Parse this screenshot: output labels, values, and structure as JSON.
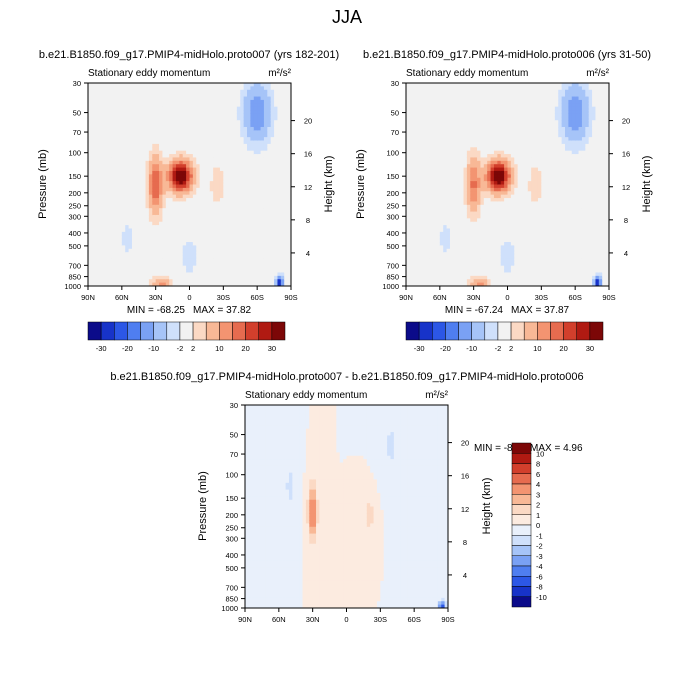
{
  "figure_title": "JJA",
  "chart_data": [
    {
      "type": "heatmap",
      "title": "b.e21.B1850.f09_g17.PMIP4-midHolo.proto007 (yrs 182-201)",
      "subtitle": "Stationary eddy momentum",
      "units": "m²/s²",
      "xlabel": "",
      "ylabel": "Pressure (mb)",
      "y2label": "Height (km)",
      "x_ticks": [
        "90N",
        "60N",
        "30N",
        "0",
        "30S",
        "60S",
        "90S"
      ],
      "x_tick_values": [
        90,
        60,
        30,
        0,
        -30,
        -60,
        -90
      ],
      "xlim": [
        90,
        -90
      ],
      "y_ticks": [
        "30",
        "50",
        "70",
        "100",
        "150",
        "200",
        "250",
        "300",
        "400",
        "500",
        "700",
        "850",
        "1000"
      ],
      "y_tick_values": [
        30,
        50,
        70,
        100,
        150,
        200,
        250,
        300,
        400,
        500,
        700,
        850,
        1000
      ],
      "ylim": [
        1000,
        30
      ],
      "y_scale": "log",
      "y2_ticks": [
        "4",
        "8",
        "12",
        "16",
        "20"
      ],
      "y2_tick_values": [
        4,
        8,
        12,
        16,
        20
      ],
      "min_label": "MIN = -68.25",
      "max_label": "MAX = 37.82",
      "min": -68.25,
      "max": 37.82,
      "features": [
        {
          "lat": 8,
          "p": 150,
          "value": 37,
          "rlat": 10,
          "rlogp": 0.11
        },
        {
          "lat": 30,
          "p": 175,
          "value": 20,
          "rlat": 6,
          "rlogp": 0.2
        },
        {
          "lat": 25,
          "p": 975,
          "value": 12,
          "rlat": 8,
          "rlogp": 0.05
        },
        {
          "lat": -25,
          "p": 175,
          "value": 5,
          "rlat": 6,
          "rlogp": 0.14
        },
        {
          "lat": -60,
          "p": 50,
          "value": -14,
          "rlat": 12,
          "rlogp": 0.22
        },
        {
          "lat": -80,
          "p": 950,
          "value": -30,
          "rlat": 3,
          "rlogp": 0.05
        },
        {
          "lat": 0,
          "p": 600,
          "value": -5,
          "rlat": 6,
          "rlogp": 0.13
        },
        {
          "lat": 55,
          "p": 450,
          "value": -4,
          "rlat": 5,
          "rlogp": 0.12
        }
      ]
    },
    {
      "type": "heatmap",
      "title": "b.e21.B1850.f09_g17.PMIP4-midHolo.proto006 (yrs 31-50)",
      "subtitle": "Stationary eddy momentum",
      "units": "m²/s²",
      "xlabel": "",
      "ylabel": "Pressure (mb)",
      "y2label": "Height (km)",
      "x_ticks": [
        "90N",
        "60N",
        "30N",
        "0",
        "30S",
        "60S",
        "90S"
      ],
      "x_tick_values": [
        90,
        60,
        30,
        0,
        -30,
        -60,
        -90
      ],
      "xlim": [
        90,
        -90
      ],
      "y_ticks": [
        "30",
        "50",
        "70",
        "100",
        "150",
        "200",
        "250",
        "300",
        "400",
        "500",
        "700",
        "850",
        "1000"
      ],
      "y_tick_values": [
        30,
        50,
        70,
        100,
        150,
        200,
        250,
        300,
        400,
        500,
        700,
        850,
        1000
      ],
      "ylim": [
        1000,
        30
      ],
      "y_scale": "log",
      "y2_ticks": [
        "4",
        "8",
        "12",
        "16",
        "20"
      ],
      "y2_tick_values": [
        4,
        8,
        12,
        16,
        20
      ],
      "min_label": "MIN = -67.24",
      "max_label": "MAX = 37.87",
      "min": -67.24,
      "max": 37.87,
      "features": [
        {
          "lat": 8,
          "p": 150,
          "value": 37,
          "rlat": 10,
          "rlogp": 0.11
        },
        {
          "lat": 30,
          "p": 175,
          "value": 16,
          "rlat": 6,
          "rlogp": 0.2
        },
        {
          "lat": 25,
          "p": 975,
          "value": 12,
          "rlat": 8,
          "rlogp": 0.05
        },
        {
          "lat": -25,
          "p": 175,
          "value": 5,
          "rlat": 6,
          "rlogp": 0.14
        },
        {
          "lat": -60,
          "p": 50,
          "value": -14,
          "rlat": 12,
          "rlogp": 0.22
        },
        {
          "lat": -80,
          "p": 950,
          "value": -30,
          "rlat": 3,
          "rlogp": 0.05
        },
        {
          "lat": 0,
          "p": 600,
          "value": -5,
          "rlat": 6,
          "rlogp": 0.13
        },
        {
          "lat": 55,
          "p": 450,
          "value": -4,
          "rlat": 5,
          "rlogp": 0.12
        }
      ]
    },
    {
      "type": "heatmap",
      "title": "b.e21.B1850.f09_g17.PMIP4-midHolo.proto007 - b.e21.B1850.f09_g17.PMIP4-midHolo.proto006",
      "subtitle": "Stationary eddy momentum",
      "units": "m²/s²",
      "xlabel": "",
      "ylabel": "Pressure (mb)",
      "y2label": "Height (km)",
      "x_ticks": [
        "90N",
        "60N",
        "30N",
        "0",
        "30S",
        "60S",
        "90S"
      ],
      "x_tick_values": [
        90,
        60,
        30,
        0,
        -30,
        -60,
        -90
      ],
      "xlim": [
        90,
        -90
      ],
      "y_ticks": [
        "30",
        "50",
        "70",
        "100",
        "150",
        "200",
        "250",
        "300",
        "400",
        "500",
        "700",
        "850",
        "1000"
      ],
      "y_tick_values": [
        30,
        50,
        70,
        100,
        150,
        200,
        250,
        300,
        400,
        500,
        700,
        850,
        1000
      ],
      "ylim": [
        1000,
        30
      ],
      "y_scale": "log",
      "y2_ticks": [
        "4",
        "8",
        "12",
        "16",
        "20"
      ],
      "y2_tick_values": [
        4,
        8,
        12,
        16,
        20
      ],
      "min_label": "MIN = -8.16",
      "max_label": "MAX =  4.96",
      "min": -8.16,
      "max": 4.96,
      "features": [
        {
          "lat": 30,
          "p": 190,
          "value": 4.5,
          "rlat": 4,
          "rlogp": 0.2
        },
        {
          "lat": -20,
          "p": 200,
          "value": 1.5,
          "rlat": 5,
          "rlogp": 0.14
        },
        {
          "lat": 50,
          "p": 120,
          "value": -1.2,
          "rlat": 6,
          "rlogp": 0.25
        },
        {
          "lat": -40,
          "p": 60,
          "value": -1.2,
          "rlat": 8,
          "rlogp": 0.25
        },
        {
          "lat": -85,
          "p": 980,
          "value": -7,
          "rlat": 3,
          "rlogp": 0.04
        }
      ]
    }
  ],
  "colorbars": {
    "main": {
      "levels": [
        "-30",
        "-20",
        "-10",
        "-2",
        "2",
        "10",
        "20",
        "30"
      ],
      "level_values": [
        -30,
        -25,
        -20,
        -15,
        -10,
        -5,
        -2,
        2,
        5,
        10,
        15,
        20,
        25,
        30
      ],
      "colors": [
        "#0b0b8a",
        "#1733c9",
        "#2c57e6",
        "#4f7ef0",
        "#7aa1f4",
        "#a6c4f8",
        "#cfe0fb",
        "#f2f2f2",
        "#fbd9c4",
        "#f8b896",
        "#f39471",
        "#e66b4f",
        "#d23f2c",
        "#b01a12",
        "#7c0707"
      ]
    },
    "diff": {
      "levels": [
        "10",
        "8",
        "6",
        "4",
        "3",
        "2",
        "1",
        "0",
        "-1",
        "-2",
        "-3",
        "-4",
        "-6",
        "-8",
        "-10"
      ],
      "level_values": [
        10,
        8,
        6,
        4,
        3,
        2,
        1,
        0,
        -1,
        -2,
        -3,
        -4,
        -6,
        -8,
        -10
      ],
      "colors": [
        "#7c0707",
        "#b01a12",
        "#d23f2c",
        "#e66b4f",
        "#f39471",
        "#f8b896",
        "#fbd9c4",
        "#fcebe0",
        "#e9f0fb",
        "#cfe0fb",
        "#a6c4f8",
        "#7aa1f4",
        "#4f7ef0",
        "#2c57e6",
        "#1733c9",
        "#0b0b8a"
      ]
    }
  }
}
